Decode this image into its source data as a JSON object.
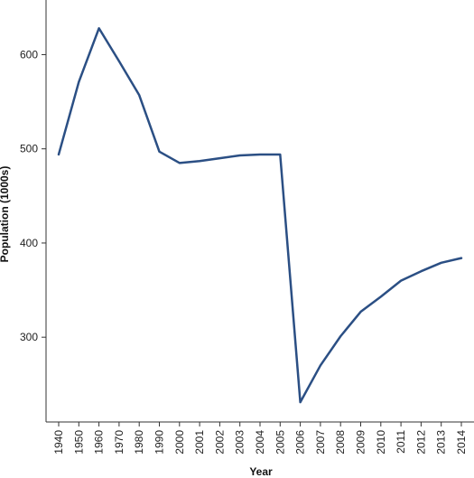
{
  "chart_data": {
    "type": "line",
    "title": "",
    "xlabel": "Year",
    "ylabel": "Population (1000s)",
    "categories": [
      "1940",
      "1950",
      "1960",
      "1970",
      "1980",
      "1990",
      "2000",
      "2001",
      "2002",
      "2003",
      "2004",
      "2005",
      "2006",
      "2007",
      "2008",
      "2009",
      "2010",
      "2011",
      "2012",
      "2013",
      "2014"
    ],
    "series": [
      {
        "values": [
          494,
          571,
          628,
          593,
          557,
          497,
          485,
          487,
          490,
          493,
          494,
          494,
          231,
          270,
          301,
          327,
          343,
          360,
          370,
          379,
          384
        ]
      }
    ],
    "yticks": [
      300,
      400,
      500,
      600
    ],
    "ylim": [
      210,
      658
    ],
    "grid": false,
    "line_color": "#2b4f84",
    "axis_color": "#333333"
  }
}
